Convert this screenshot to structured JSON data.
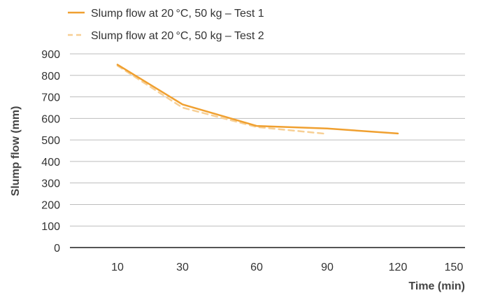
{
  "chart_data": {
    "type": "line",
    "xlabel": "Time (min)",
    "ylabel": "Slump flow (mm)",
    "x_ticks": [
      "10",
      "30",
      "60",
      "90",
      "120",
      "150"
    ],
    "y_ticks": [
      "0",
      "100",
      "200",
      "300",
      "400",
      "500",
      "600",
      "700",
      "800",
      "900"
    ],
    "ylim": [
      0,
      900
    ],
    "grid": true,
    "legend_position": "top-left",
    "series": [
      {
        "name": "Slump flow at 20 °C, 50 kg – Test 1",
        "style": "solid",
        "color": "#f0a030",
        "points": [
          {
            "x": "10",
            "y": 850
          },
          {
            "x": "30",
            "y": 665
          },
          {
            "x": "60",
            "y": 565
          },
          {
            "x": "90",
            "y": 553
          },
          {
            "x": "120",
            "y": 530
          }
        ]
      },
      {
        "name": "Slump flow at 20 °C, 50 kg – Test 2",
        "style": "dashed",
        "color": "#f7cf94",
        "points": [
          {
            "x": "10",
            "y": 845
          },
          {
            "x": "30",
            "y": 650
          },
          {
            "x": "60",
            "y": 560
          },
          {
            "x": "90",
            "y": 528
          }
        ]
      }
    ]
  }
}
